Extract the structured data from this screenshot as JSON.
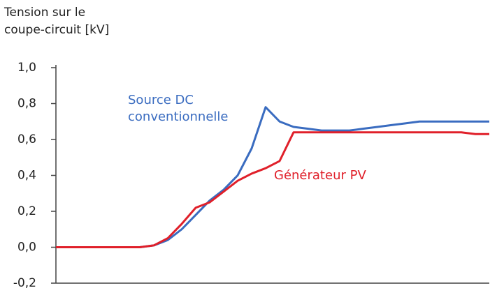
{
  "chart_data": {
    "type": "line",
    "title": [
      "Tension sur le",
      "coupe-circuit [kV]"
    ],
    "categories": [
      null,
      null,
      null,
      null,
      null,
      null,
      null,
      null,
      null,
      null,
      null,
      null,
      null,
      null,
      null,
      null,
      null,
      null,
      null,
      null,
      null,
      null,
      null,
      null,
      null,
      null,
      null,
      null,
      null,
      null,
      null,
      null
    ],
    "series": [
      {
        "name": "Source DC conventionnelle",
        "color": "#3a6cc0",
        "values": [
          0,
          0,
          0,
          0,
          0,
          0,
          0,
          0.01,
          0.04,
          0.1,
          0.18,
          0.26,
          0.32,
          0.4,
          0.55,
          0.78,
          0.7,
          0.67,
          0.66,
          0.65,
          0.65,
          0.65,
          0.66,
          0.67,
          0.68,
          0.69,
          0.7,
          0.7,
          0.7,
          0.7,
          0.7,
          0.7
        ]
      },
      {
        "name": "Générateur PV",
        "color": "#e0202a",
        "values": [
          0,
          0,
          0,
          0,
          0,
          0,
          0,
          0.01,
          0.05,
          0.13,
          0.22,
          0.25,
          0.31,
          0.37,
          0.41,
          0.44,
          0.48,
          0.64,
          0.64,
          0.64,
          0.64,
          0.64,
          0.64,
          0.64,
          0.64,
          0.64,
          0.64,
          0.64,
          0.64,
          0.64,
          0.63,
          0.63
        ]
      }
    ],
    "ylim": [
      -0.2,
      1.0
    ],
    "yticks": [
      {
        "value": -0.2,
        "label": "-0,2"
      },
      {
        "value": 0,
        "label": "0,0"
      },
      {
        "value": 0.2,
        "label": "0,2"
      },
      {
        "value": 0.4,
        "label": "0,4"
      },
      {
        "value": 0.6,
        "label": "0,6"
      },
      {
        "value": 0.8,
        "label": "0,8"
      },
      {
        "value": 1.0,
        "label": "1,0"
      }
    ]
  }
}
